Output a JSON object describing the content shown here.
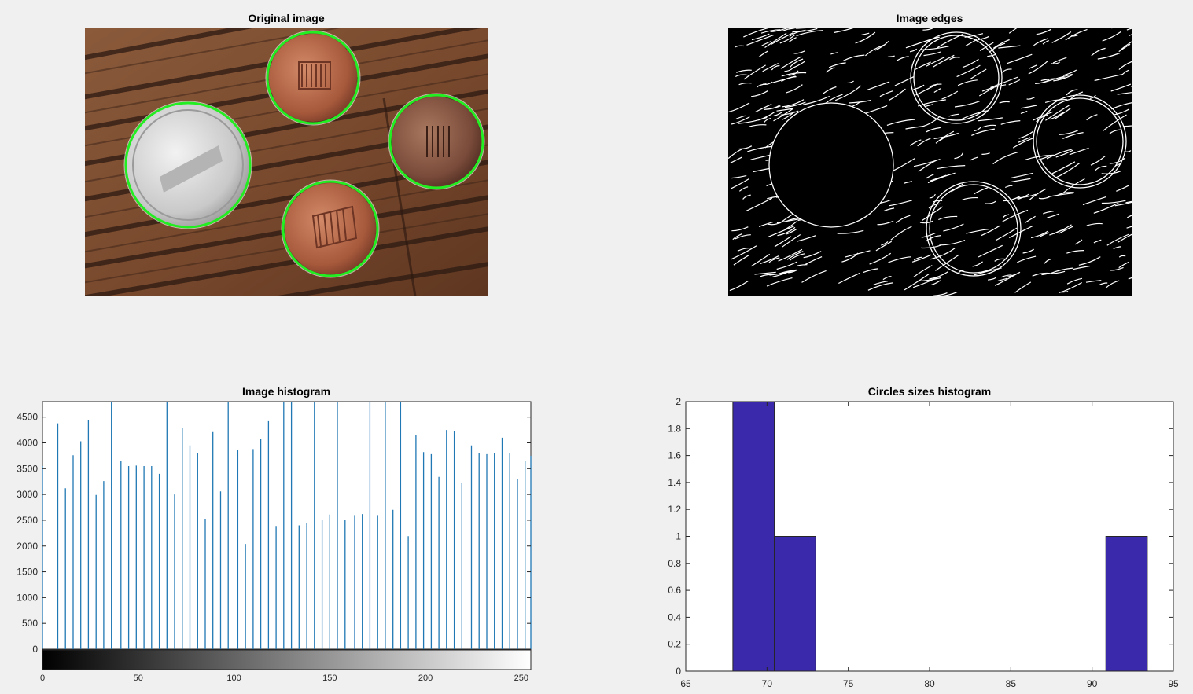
{
  "figure": {
    "titles": {
      "original": "Original image",
      "edges": "Image edges",
      "histogram": "Image histogram",
      "circles": "Circles sizes histogram"
    },
    "colors": {
      "background": "#f0f0f0",
      "stem": "#1f77b4",
      "bar": "#3a2aab",
      "circle": "#22ee22"
    }
  },
  "original_image": {
    "description_icon": "coins-photo-icon",
    "detected_circles": 4
  },
  "chart_data": [
    {
      "type": "bar",
      "title": "Image histogram",
      "xlabel": "",
      "ylabel": "",
      "xlim": [
        0,
        255
      ],
      "ylim": [
        0,
        4800
      ],
      "xticks": [
        "0",
        "50",
        "100",
        "150",
        "200",
        "250"
      ],
      "yticks": [
        "0",
        "500",
        "1000",
        "1500",
        "2000",
        "2500",
        "3000",
        "3500",
        "4000",
        "4500"
      ],
      "x": [
        0,
        8,
        12,
        16,
        20,
        24,
        28,
        32,
        36,
        41,
        45,
        49,
        53,
        57,
        61,
        65,
        69,
        73,
        77,
        81,
        85,
        89,
        93,
        97,
        102,
        106,
        110,
        114,
        118,
        122,
        126,
        130,
        134,
        138,
        142,
        146,
        150,
        154,
        158,
        163,
        167,
        171,
        175,
        179,
        183,
        187,
        191,
        195,
        199,
        203,
        207,
        211,
        215,
        219,
        224,
        228,
        232,
        236,
        240,
        244,
        248,
        252,
        255
      ],
      "values": [
        3550,
        4380,
        3120,
        3760,
        4030,
        4450,
        2990,
        3260,
        4800,
        3650,
        3550,
        3560,
        3550,
        3550,
        3400,
        4800,
        3000,
        4290,
        3950,
        3800,
        2530,
        4210,
        3060,
        4800,
        3860,
        2040,
        3880,
        4080,
        4420,
        2390,
        4800,
        4800,
        2400,
        2450,
        4800,
        2500,
        2610,
        4800,
        2500,
        2600,
        2620,
        4800,
        2600,
        4800,
        2700,
        4800,
        2190,
        4150,
        3820,
        3780,
        3340,
        4250,
        4230,
        3220,
        3950,
        3800,
        3780,
        3800,
        4100,
        3800,
        3300,
        3650,
        3750
      ],
      "colorbar": "grayscale 0-255"
    },
    {
      "type": "bar",
      "title": "Circles sizes histogram",
      "xlabel": "",
      "ylabel": "",
      "xlim": [
        65,
        95
      ],
      "ylim": [
        0,
        2
      ],
      "xticks": [
        "65",
        "70",
        "75",
        "80",
        "85",
        "90",
        "95"
      ],
      "yticks": [
        "0",
        "0.2",
        "0.4",
        "0.6",
        "0.8",
        "1",
        "1.2",
        "1.4",
        "1.6",
        "1.8",
        "2"
      ],
      "bins": [
        {
          "from": 67.9,
          "to": 70.45,
          "value": 2
        },
        {
          "from": 70.45,
          "to": 73.0,
          "value": 1
        },
        {
          "from": 73.0,
          "to": 75.55,
          "value": 0
        },
        {
          "from": 75.55,
          "to": 78.1,
          "value": 0
        },
        {
          "from": 78.1,
          "to": 80.65,
          "value": 0
        },
        {
          "from": 80.65,
          "to": 83.2,
          "value": 0
        },
        {
          "from": 83.2,
          "to": 85.75,
          "value": 0
        },
        {
          "from": 85.75,
          "to": 88.3,
          "value": 0
        },
        {
          "from": 88.3,
          "to": 90.85,
          "value": 0
        },
        {
          "from": 90.85,
          "to": 93.4,
          "value": 1
        }
      ]
    }
  ]
}
